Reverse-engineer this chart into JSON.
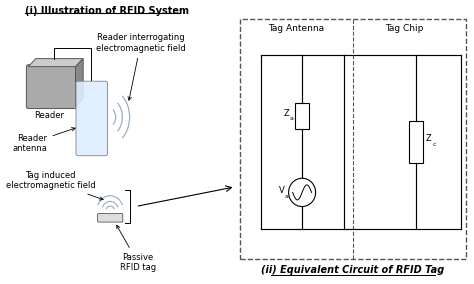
{
  "title_left": "(i) Illustration of RFID System",
  "title_right": "(ii) Equivalent Circuit of RFID Tag",
  "label_reader": "Reader",
  "label_reader_antenna": "Reader\nantenna",
  "label_reader_field": "Reader interrogating\nelectromagnetic field",
  "label_tag_field": "Tag induced\nelectromagnetic field",
  "label_passive_tag": "Passive\nRFID tag",
  "label_tag_antenna": "Tag Antenna",
  "label_tag_chip": "Tag Chip",
  "label_Za": "Za",
  "label_Va": "Va",
  "label_Zc": "Zc",
  "bg_color": "#ffffff",
  "text_color": "#000000",
  "reader_color_front": "#aaaaaa",
  "reader_color_top": "#cccccc",
  "reader_color_side": "#888888",
  "antenna_color": "#ddeeff",
  "wave_color": "#99aabb",
  "tag_color": "#dddddd",
  "circuit_edge": "#333333",
  "dashed_color": "#555555"
}
